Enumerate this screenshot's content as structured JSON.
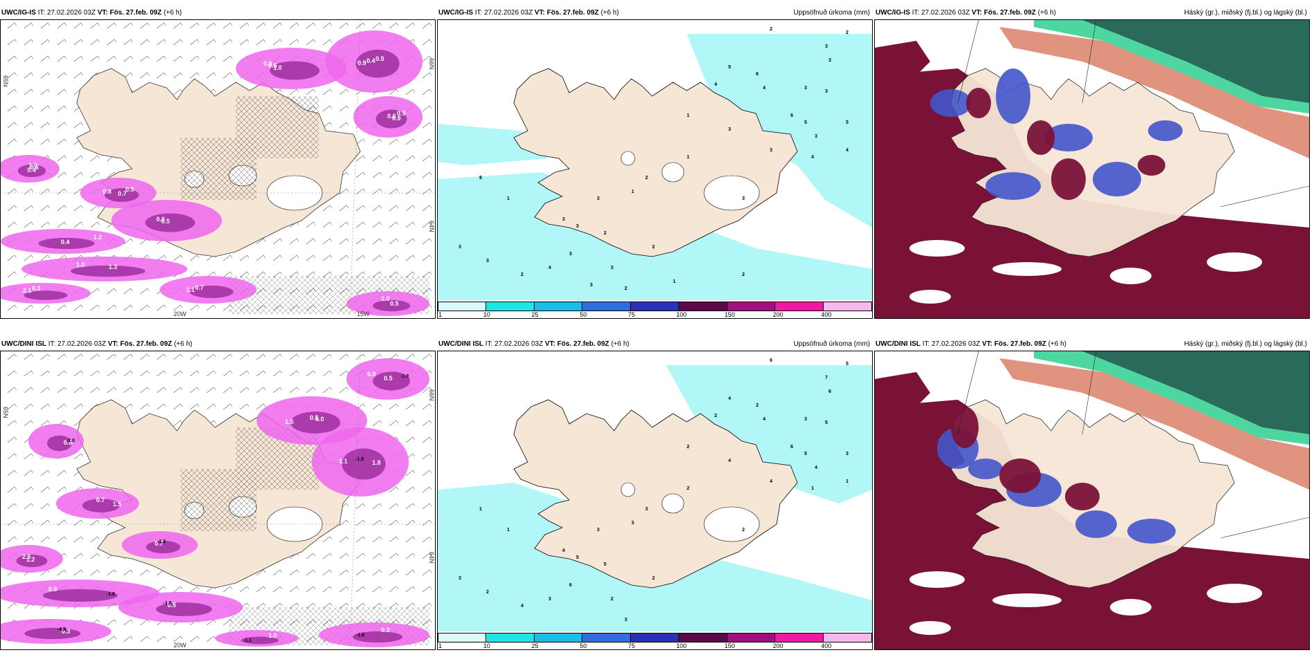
{
  "panels": [
    {
      "id": "p1",
      "model": "UWC/IG-IS",
      "it": "IT: 27.02.2026 03Z",
      "vt": "VT: Fös. 27.feb. 09Z",
      "lead": "(+6 h)",
      "product": "",
      "kind": "wind"
    },
    {
      "id": "p2",
      "model": "UWC/IG-IS",
      "it": "IT: 27.02.2026 03Z",
      "vt": "VT: Fös. 27.feb. 09Z",
      "lead": "(+6 h)",
      "product": "Uppsöfnuð úrkoma (mm)",
      "kind": "precip"
    },
    {
      "id": "p3",
      "model": "UWC/IG-IS",
      "it": "IT: 27.02.2026 03Z",
      "vt": "VT: Fös. 27.feb. 09Z",
      "lead": "(+6 h)",
      "product": "Háský (gr.), miðský (fj.bl.) og lágský (bl.)",
      "kind": "cloud"
    },
    {
      "id": "p4",
      "model": "UWC/DINI ISL",
      "it": "IT: 27.02.2026 03Z",
      "vt": "VT: Fös. 27.feb. 09Z",
      "lead": "(+6 h)",
      "product": "",
      "kind": "wind"
    },
    {
      "id": "p5",
      "model": "UWC/DINI ISL",
      "it": "IT: 27.02.2026 03Z",
      "vt": "VT: Fös. 27.feb. 09Z",
      "lead": "(+6 h)",
      "product": "Uppsöfnuð úrkoma (mm)",
      "kind": "precip"
    },
    {
      "id": "p6",
      "model": "UWC/DINI ISL",
      "it": "IT: 27.02.2026 03Z",
      "vt": "VT: Fös. 27.feb. 09Z",
      "lead": "(+6 h)",
      "product": "Háský (gr.), miðský (fj.bl.) og lágský (bl.)",
      "kind": "cloud"
    }
  ],
  "colorbar": {
    "labels": [
      "1",
      "10",
      "25",
      "50",
      "75",
      "100",
      "150",
      "200",
      "400"
    ],
    "colors": [
      "#d9fbfb",
      "#1fe6e6",
      "#18bde8",
      "#2f6fe0",
      "#2a33b8",
      "#5e0a4a",
      "#a0117f",
      "#ee1aa6",
      "#f7b8ee"
    ]
  },
  "axis_labels": {
    "p1": {
      "lat_top": "66N",
      "lat_mid": "64N",
      "lat_left": "65N",
      "lon_bottom": "15W",
      "lon_bottom2": "20W"
    },
    "p4": {
      "lat_top": "66N",
      "lat_mid": "64N",
      "lat_left": "65N",
      "lon_bottom": "20W"
    }
  },
  "precip_values": {
    "p2": [
      "2",
      "2",
      "3",
      "3",
      "5",
      "6",
      "4",
      "4",
      "3",
      "3",
      "6",
      "5",
      "3",
      "3",
      "1",
      "5",
      "4",
      "4",
      "3",
      "3",
      "1",
      "2",
      "1",
      "3",
      "3",
      "3",
      "2",
      "2",
      "2",
      "3",
      "3",
      "4",
      "8",
      "1",
      "3",
      "3",
      "2",
      "3",
      "1",
      "2"
    ],
    "p5": [
      "6",
      "5",
      "7",
      "6",
      "4",
      "2",
      "2",
      "4",
      "3",
      "5",
      "6",
      "5",
      "4",
      "4",
      "2",
      "3",
      "1",
      "1",
      "4",
      "2",
      "2",
      "3",
      "3",
      "3",
      "4",
      "5",
      "5",
      "2",
      "3",
      "2",
      "6",
      "3",
      "1",
      "1",
      "3",
      "2",
      "4"
    ]
  },
  "wind_values": {
    "p1": [
      "0.8",
      "0.5",
      "0.6",
      "0.4",
      "0.5",
      "0.6",
      "0.4",
      "1.0",
      "0.7",
      "0.5",
      "0.3",
      "0.5",
      "0.4",
      "0.9",
      "1.0",
      "0.8",
      "0.5",
      "1.2",
      "1.3",
      "1.1",
      "1.0",
      "2.1",
      "1.0",
      "0.9",
      "0.5",
      "0.6",
      "0.7"
    ],
    "p4": [
      "0.8",
      "0.5",
      "1.1",
      "0.8",
      "0.7",
      "0.7",
      "1.2",
      "0.9",
      "0.5",
      "0.3",
      "0.3",
      "1.0",
      "0.5",
      "1.5",
      "-1.5",
      "-1.0",
      "1.5",
      "-1.3",
      "2.5",
      "-1.0",
      "-1.6",
      "-4.8",
      "-1.6",
      "-1.1",
      "-1.0",
      "5.0",
      "1.8"
    ]
  },
  "colors": {
    "land": "#f6e6d6",
    "sea_precip": "#b2f7f7",
    "wind_pink": "#ee66ee",
    "wind_dark": "#9a2b9a",
    "cloud_low": "#7a1238",
    "cloud_mid": "#4455cc",
    "cloud_high": "#2a6a5a",
    "cloud_green": "#22cc88",
    "cloud_red": "#d05a3a"
  }
}
